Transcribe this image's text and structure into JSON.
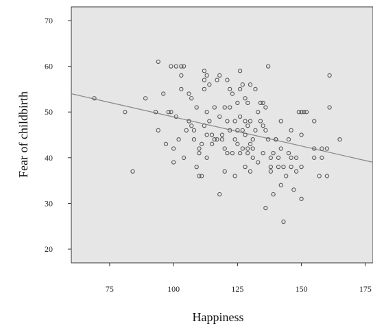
{
  "chart_data": {
    "type": "scatter",
    "title": "",
    "xlabel": "Happiness",
    "ylabel": "Fear of childbirth",
    "xlim": [
      60,
      178
    ],
    "ylim": [
      17,
      73
    ],
    "xticks": [
      75,
      100,
      125,
      150,
      175
    ],
    "yticks": [
      20,
      30,
      40,
      50,
      60,
      70
    ],
    "grid": false,
    "legend": "none",
    "colors": {
      "plot_background": "#e6e6e6",
      "point_stroke": "#555555",
      "fit_line": "#8c8c8c",
      "axis": "#333333"
    },
    "fit_line": {
      "x": [
        60,
        178
      ],
      "y": [
        54,
        39
      ]
    },
    "points": [
      [
        69,
        53
      ],
      [
        81,
        50
      ],
      [
        84,
        37
      ],
      [
        89,
        53
      ],
      [
        93,
        50
      ],
      [
        94,
        61
      ],
      [
        94,
        46
      ],
      [
        96,
        54
      ],
      [
        97,
        43
      ],
      [
        98,
        50
      ],
      [
        99,
        60
      ],
      [
        99,
        50
      ],
      [
        100,
        42
      ],
      [
        100,
        39
      ],
      [
        101,
        60
      ],
      [
        101,
        49
      ],
      [
        102,
        44
      ],
      [
        103,
        55
      ],
      [
        103,
        60
      ],
      [
        103,
        58
      ],
      [
        104,
        60
      ],
      [
        104,
        40
      ],
      [
        105,
        46
      ],
      [
        106,
        54
      ],
      [
        106,
        48
      ],
      [
        107,
        47
      ],
      [
        107,
        53
      ],
      [
        108,
        46
      ],
      [
        108,
        44
      ],
      [
        109,
        51
      ],
      [
        109,
        38
      ],
      [
        110,
        36
      ],
      [
        110,
        42
      ],
      [
        110,
        41
      ],
      [
        111,
        43
      ],
      [
        111,
        36
      ],
      [
        112,
        57
      ],
      [
        112,
        55
      ],
      [
        112,
        47
      ],
      [
        112,
        59
      ],
      [
        113,
        58
      ],
      [
        113,
        50
      ],
      [
        113,
        45
      ],
      [
        113,
        40
      ],
      [
        114,
        56
      ],
      [
        114,
        48
      ],
      [
        115,
        43
      ],
      [
        115,
        45
      ],
      [
        116,
        44
      ],
      [
        116,
        51
      ],
      [
        117,
        57
      ],
      [
        117,
        44
      ],
      [
        118,
        58
      ],
      [
        118,
        32
      ],
      [
        118,
        49
      ],
      [
        119,
        44
      ],
      [
        119,
        45
      ],
      [
        120,
        51
      ],
      [
        120,
        42
      ],
      [
        120,
        37
      ],
      [
        121,
        57
      ],
      [
        121,
        48
      ],
      [
        121,
        41
      ],
      [
        122,
        51
      ],
      [
        122,
        55
      ],
      [
        122,
        46
      ],
      [
        123,
        54
      ],
      [
        123,
        41
      ],
      [
        124,
        48
      ],
      [
        124,
        44
      ],
      [
        124,
        36
      ],
      [
        125,
        52
      ],
      [
        125,
        46
      ],
      [
        125,
        43
      ],
      [
        126,
        59
      ],
      [
        126,
        55
      ],
      [
        126,
        49
      ],
      [
        126,
        41
      ],
      [
        127,
        56
      ],
      [
        127,
        46
      ],
      [
        127,
        42
      ],
      [
        128,
        53
      ],
      [
        128,
        48
      ],
      [
        128,
        45
      ],
      [
        128,
        38
      ],
      [
        129,
        42
      ],
      [
        129,
        47
      ],
      [
        129,
        52
      ],
      [
        129,
        41
      ],
      [
        130,
        56
      ],
      [
        130,
        48
      ],
      [
        130,
        43
      ],
      [
        130,
        37
      ],
      [
        131,
        44
      ],
      [
        131,
        42
      ],
      [
        131,
        40
      ],
      [
        132,
        46
      ],
      [
        132,
        55
      ],
      [
        133,
        50
      ],
      [
        133,
        39
      ],
      [
        134,
        48
      ],
      [
        134,
        52
      ],
      [
        135,
        52
      ],
      [
        135,
        41
      ],
      [
        135,
        47
      ],
      [
        136,
        29
      ],
      [
        136,
        51
      ],
      [
        136,
        46
      ],
      [
        137,
        60
      ],
      [
        137,
        44
      ],
      [
        138,
        38
      ],
      [
        138,
        40
      ],
      [
        138,
        37
      ],
      [
        139,
        32
      ],
      [
        139,
        41
      ],
      [
        140,
        44
      ],
      [
        140,
        44
      ],
      [
        141,
        40
      ],
      [
        141,
        38
      ],
      [
        142,
        48
      ],
      [
        142,
        42
      ],
      [
        142,
        34
      ],
      [
        143,
        26
      ],
      [
        143,
        38
      ],
      [
        144,
        36
      ],
      [
        145,
        41
      ],
      [
        145,
        44
      ],
      [
        146,
        46
      ],
      [
        146,
        40
      ],
      [
        146,
        38
      ],
      [
        147,
        33
      ],
      [
        148,
        37
      ],
      [
        148,
        40
      ],
      [
        149,
        50
      ],
      [
        150,
        50
      ],
      [
        150,
        45
      ],
      [
        150,
        31
      ],
      [
        150,
        38
      ],
      [
        151,
        50
      ],
      [
        152,
        50
      ],
      [
        155,
        42
      ],
      [
        155,
        40
      ],
      [
        155,
        48
      ],
      [
        157,
        36
      ],
      [
        158,
        42
      ],
      [
        158,
        40
      ],
      [
        160,
        36
      ],
      [
        160,
        42
      ],
      [
        161,
        58
      ],
      [
        161,
        51
      ],
      [
        165,
        44
      ]
    ]
  }
}
